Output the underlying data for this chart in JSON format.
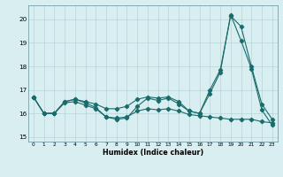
{
  "x": [
    0,
    1,
    2,
    3,
    4,
    5,
    6,
    7,
    8,
    9,
    10,
    11,
    12,
    13,
    14,
    15,
    16,
    17,
    18,
    19,
    20,
    21,
    22,
    23
  ],
  "line1": [
    16.7,
    16.0,
    16.0,
    16.5,
    16.6,
    16.5,
    16.4,
    16.2,
    16.2,
    16.3,
    16.6,
    16.7,
    16.65,
    16.7,
    16.5,
    16.1,
    16.0,
    17.0,
    17.85,
    20.15,
    19.7,
    18.0,
    16.4,
    15.75
  ],
  "line2": [
    16.7,
    16.0,
    16.0,
    16.5,
    16.6,
    16.45,
    16.25,
    15.85,
    15.75,
    15.8,
    16.3,
    16.65,
    16.55,
    16.65,
    16.4,
    16.1,
    16.0,
    16.85,
    17.75,
    20.2,
    19.1,
    17.9,
    16.15,
    15.5
  ],
  "line3": [
    16.7,
    16.0,
    16.0,
    16.45,
    16.5,
    16.35,
    16.2,
    15.85,
    15.8,
    15.85,
    16.1,
    16.2,
    16.15,
    16.2,
    16.1,
    15.95,
    15.9,
    15.85,
    15.8,
    15.75,
    15.75,
    15.75,
    15.65,
    15.6
  ],
  "line_color": "#1a6b6b",
  "bg_color": "#d8eef0",
  "grid_color": "#b8d4d8",
  "xlabel": "Humidex (Indice chaleur)",
  "ylim": [
    14.8,
    20.6
  ],
  "xlim": [
    -0.5,
    23.5
  ],
  "yticks": [
    15,
    16,
    17,
    18,
    19,
    20
  ],
  "xticks": [
    0,
    1,
    2,
    3,
    4,
    5,
    6,
    7,
    8,
    9,
    10,
    11,
    12,
    13,
    14,
    15,
    16,
    17,
    18,
    19,
    20,
    21,
    22,
    23
  ]
}
